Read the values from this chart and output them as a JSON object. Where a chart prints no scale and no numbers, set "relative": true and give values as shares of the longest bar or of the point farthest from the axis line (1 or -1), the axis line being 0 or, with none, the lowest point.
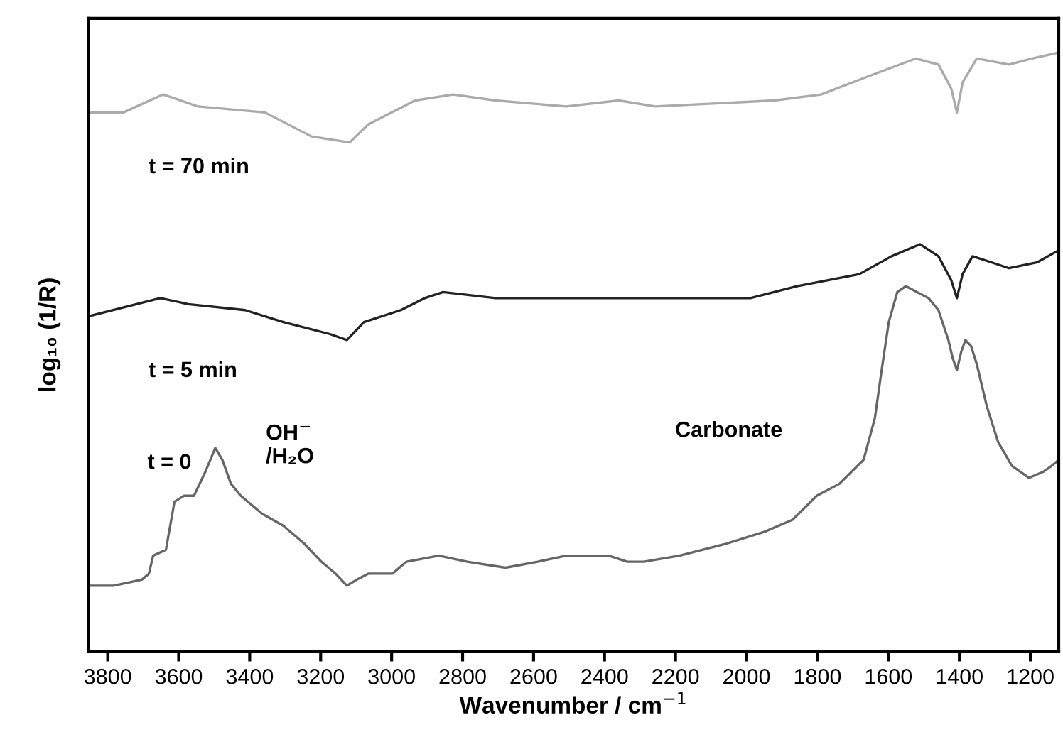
{
  "chart_data": {
    "type": "line",
    "relative": true,
    "xlabel": "Wavenumber / cm$^{−1}$",
    "ylabel": "log₁₀ (1/R)",
    "xlim": [
      3855,
      1120
    ],
    "xticks": [
      3800,
      3600,
      3400,
      3200,
      3000,
      2800,
      2600,
      2400,
      2200,
      2000,
      1800,
      1600,
      1400,
      1200
    ],
    "grid": false,
    "legend": false,
    "series": [
      {
        "name": "t = 0",
        "color": "#666666",
        "x": [
          3855,
          3784,
          3704,
          3684,
          3672,
          3636,
          3612,
          3585,
          3557,
          3525,
          3497,
          3477,
          3453,
          3425,
          3365,
          3305,
          3246,
          3198,
          3158,
          3126,
          3098,
          3066,
          2998,
          2958,
          2867,
          2787,
          2679,
          2588,
          2508,
          2388,
          2336,
          2289,
          2189,
          2057,
          1949,
          1870,
          1802,
          1738,
          1670,
          1638,
          1619,
          1599,
          1575,
          1551,
          1519,
          1487,
          1459,
          1431,
          1419,
          1407,
          1395,
          1383,
          1367,
          1351,
          1323,
          1291,
          1252,
          1204,
          1164,
          1140,
          1120
        ],
        "values": [
          0.11,
          0.11,
          0.12,
          0.13,
          0.16,
          0.17,
          0.25,
          0.26,
          0.26,
          0.3,
          0.34,
          0.32,
          0.28,
          0.26,
          0.23,
          0.21,
          0.18,
          0.15,
          0.13,
          0.11,
          0.12,
          0.13,
          0.13,
          0.15,
          0.16,
          0.15,
          0.14,
          0.15,
          0.16,
          0.16,
          0.15,
          0.15,
          0.16,
          0.18,
          0.2,
          0.22,
          0.26,
          0.28,
          0.32,
          0.39,
          0.47,
          0.55,
          0.6,
          0.61,
          0.6,
          0.59,
          0.57,
          0.52,
          0.49,
          0.47,
          0.5,
          0.52,
          0.51,
          0.48,
          0.41,
          0.35,
          0.31,
          0.29,
          0.3,
          0.31,
          0.32
        ]
      },
      {
        "name": "t = 5 min",
        "color": "#222222",
        "x": [
          3852,
          3652,
          3573,
          3413,
          3305,
          3174,
          3126,
          3078,
          2974,
          2907,
          2855,
          2707,
          2508,
          2360,
          2296,
          1989,
          1858,
          1682,
          1591,
          1511,
          1459,
          1423,
          1407,
          1391,
          1363,
          1311,
          1260,
          1180,
          1120
        ],
        "values": [
          0.56,
          0.59,
          0.58,
          0.57,
          0.55,
          0.53,
          0.52,
          0.55,
          0.57,
          0.59,
          0.6,
          0.59,
          0.59,
          0.59,
          0.59,
          0.59,
          0.61,
          0.63,
          0.66,
          0.68,
          0.66,
          0.62,
          0.59,
          0.63,
          0.66,
          0.65,
          0.64,
          0.65,
          0.67
        ]
      },
      {
        "name": "t = 70 min",
        "color": "#aaaaaa",
        "x": [
          3852,
          3756,
          3644,
          3545,
          3357,
          3226,
          3118,
          3066,
          2934,
          2827,
          2707,
          2508,
          2360,
          2257,
          1922,
          1790,
          1658,
          1523,
          1459,
          1423,
          1407,
          1391,
          1351,
          1260,
          1195,
          1120
        ],
        "values": [
          0.9,
          0.9,
          0.93,
          0.91,
          0.9,
          0.86,
          0.85,
          0.88,
          0.92,
          0.93,
          0.92,
          0.91,
          0.92,
          0.91,
          0.92,
          0.93,
          0.96,
          0.99,
          0.98,
          0.94,
          0.9,
          0.95,
          0.99,
          0.98,
          0.99,
          1.0
        ]
      }
    ],
    "annotations": [
      "OH$^{−}$\n/H₂O",
      "Carbonate"
    ]
  }
}
